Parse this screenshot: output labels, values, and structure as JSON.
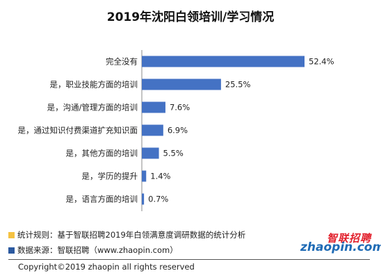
{
  "title": "2019年沈阳白领培训/学习情况",
  "chart_data": {
    "type": "bar",
    "orientation": "horizontal",
    "categories": [
      "完全没有",
      "是，职业技能方面的培训",
      "是，沟通/管理方面的培训",
      "是，通过知识付费渠道扩充知识面",
      "是，其他方面的培训",
      "是，学历的提升",
      "是，语言方面的培训"
    ],
    "values": [
      52.4,
      25.5,
      7.6,
      6.9,
      5.5,
      1.4,
      0.7
    ],
    "value_labels": [
      "52.4%",
      "25.5%",
      "7.6%",
      "6.9%",
      "5.5%",
      "1.4%",
      "0.7%"
    ],
    "bar_color": "#4472c4",
    "grid": false,
    "legend": "none"
  },
  "notes": {
    "rule": "统计规则：基于智联招聘2019年白领满意度调研数据的统计分析",
    "source": "数据来源：智联招聘（www.zhaopin.com）",
    "rule_color": "#f5c242",
    "source_color": "#2c5aa0"
  },
  "logo": {
    "cn": "智联招聘",
    "en": "zhaopin.com"
  },
  "copyright": "Copyright©2019 zhaopin all rights reserved"
}
